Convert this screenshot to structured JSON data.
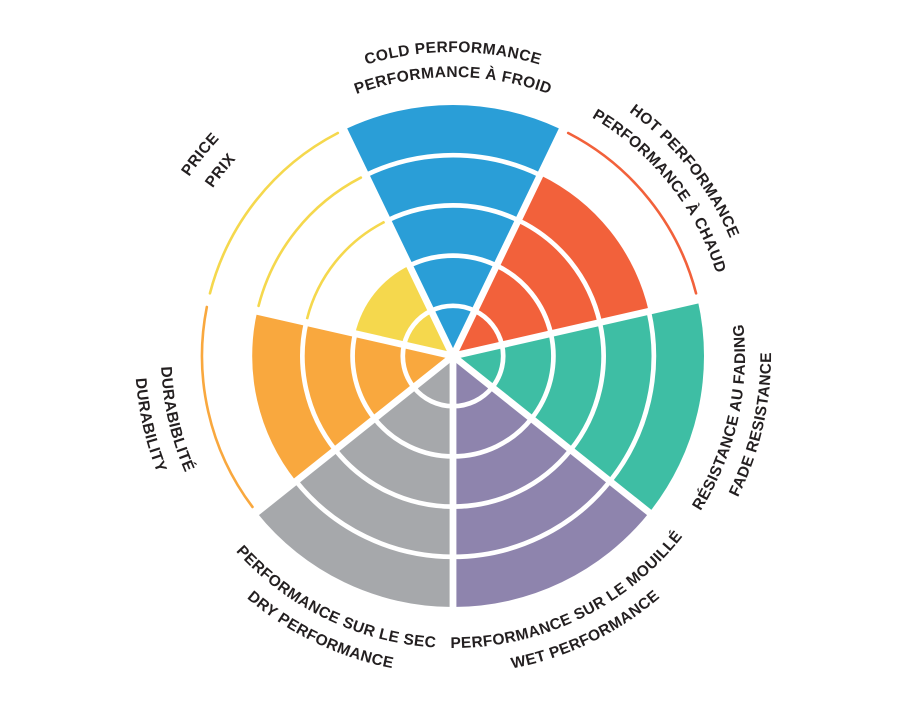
{
  "chart_data": {
    "type": "bar",
    "variant": "polar-coxcomb-sector-chart",
    "title": "",
    "value_range": [
      0,
      5
    ],
    "rings": 5,
    "start_angle_deg": -90,
    "direction": "clockwise",
    "grid": "white concentric ring dividers every 1 unit inside filled sectors",
    "unfilled_rings": "thin outline arcs drawn in the segment color",
    "legend_position": "none",
    "categories": [
      "COLD PERFORMANCE",
      "HOT PERFORMANCE",
      "FADE RESISTANCE",
      "WET PERFORMANCE",
      "DRY PERFORMANCE",
      "DURABILITY",
      "PRICE"
    ],
    "values": [
      5,
      4,
      5,
      5,
      5,
      4,
      2
    ],
    "segments": [
      {
        "id": "cold-performance",
        "label_en": "COLD PERFORMANCE",
        "label_fr": "PERFORMANCE À FROID",
        "value": 5,
        "max": 5,
        "color": "#2A9ED7"
      },
      {
        "id": "hot-performance",
        "label_en": "HOT PERFORMANCE",
        "label_fr": "PERFORMANCE À CHAUD",
        "value": 4,
        "max": 5,
        "color": "#F2613B"
      },
      {
        "id": "fade-resistance",
        "label_en": "FADE RESISTANCE",
        "label_fr": "RÉSISTANCE AU FADING",
        "value": 5,
        "max": 5,
        "color": "#3EBEA4"
      },
      {
        "id": "wet-performance",
        "label_en": "WET PERFORMANCE",
        "label_fr": "PERFORMANCE SUR LE MOUILLÉ",
        "value": 5,
        "max": 5,
        "color": "#8E84AD"
      },
      {
        "id": "dry-performance",
        "label_en": "DRY PERFORMANCE",
        "label_fr": "PERFORMANCE SUR LE SEC",
        "value": 5,
        "max": 5,
        "color": "#A6A8AB"
      },
      {
        "id": "durability",
        "label_en": "DURABILITY",
        "label_fr": "DURABIBLITÉ",
        "value": 4,
        "max": 5,
        "color": "#F9A83E"
      },
      {
        "id": "price",
        "label_en": "PRICE",
        "label_fr": "PRIX",
        "value": 2,
        "max": 5,
        "color": "#F5D84D"
      }
    ]
  },
  "colors": {
    "background": "#FFFFFF",
    "label_text": "#231F20",
    "ring_divider": "#FFFFFF"
  }
}
